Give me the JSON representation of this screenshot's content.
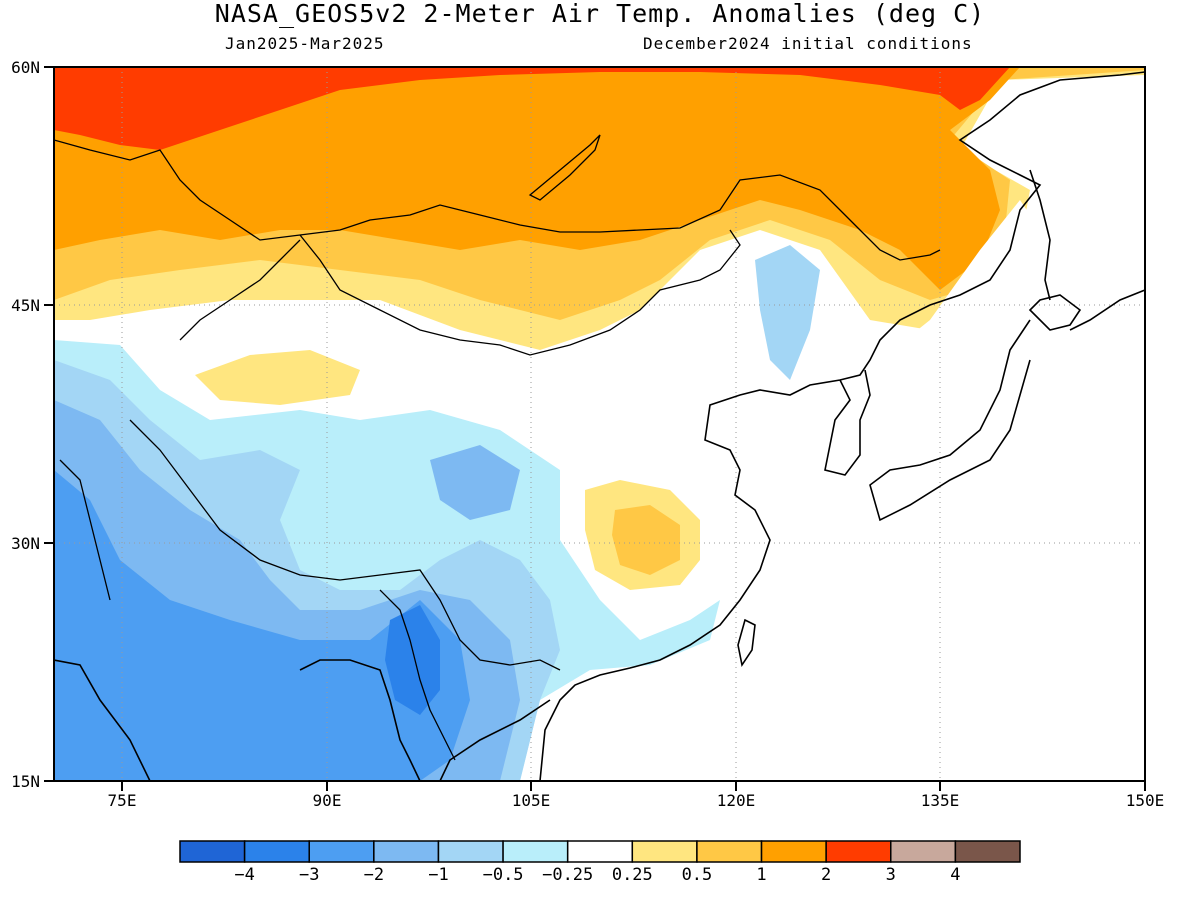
{
  "title": "NASA_GEOS5v2 2-Meter Air Temp. Anomalies (deg C)",
  "subtitle_left": "Jan2025-Mar2025",
  "subtitle_right": "December2024 initial conditions",
  "map": {
    "lon_range": [
      70,
      150
    ],
    "lat_range": [
      15,
      60
    ],
    "lat_labels": [
      "15N",
      "30N",
      "45N",
      "60N"
    ],
    "lat_values": [
      15,
      30,
      45,
      60
    ],
    "lon_labels": [
      "75E",
      "90E",
      "105E",
      "120E",
      "135E",
      "150E"
    ],
    "lon_values": [
      75,
      90,
      105,
      120,
      135,
      150
    ],
    "grid": "dotted"
  },
  "colorbar": {
    "colors": [
      "#1f65d6",
      "#2b82ea",
      "#4d9ef2",
      "#7db9f2",
      "#a3d6f5",
      "#b9eefa",
      "#ffffff",
      "#ffe680",
      "#ffc845",
      "#ffa000",
      "#ff3c00",
      "#c8a89c",
      "#7a564a"
    ],
    "labels": [
      "-4",
      "-3",
      "-2",
      "-1",
      "-0.5",
      "-0.25",
      "0.25",
      "0.5",
      "1",
      "2",
      "3",
      "4"
    ]
  },
  "field_colors": {
    "strong_warm": "#ff3c00",
    "warm2": "#ffa000",
    "warm1": "#ffc845",
    "warm05": "#ffe680",
    "neutral": "#ffffff",
    "cool025": "#b9eefa",
    "cool05": "#a3d6f5",
    "cool1": "#7db9f2",
    "cool2": "#4d9ef2",
    "cool3": "#2b82ea"
  }
}
